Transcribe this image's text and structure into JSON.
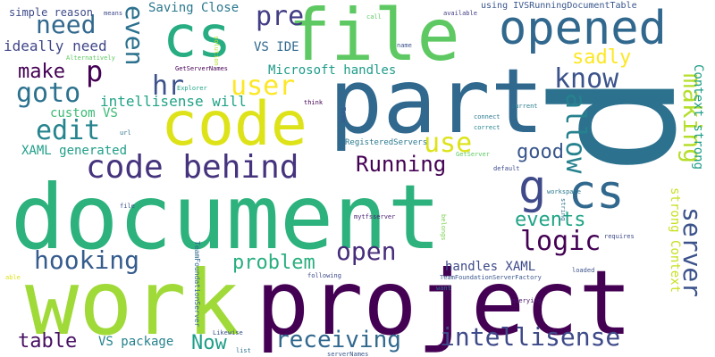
{
  "cloud": {
    "words": [
      {
        "text": "document",
        "color": "#2db27d"
      },
      {
        "text": "p",
        "color": "#2c718e"
      },
      {
        "text": "part",
        "color": "#31688e"
      },
      {
        "text": "work",
        "color": "#a0da39"
      },
      {
        "text": "project",
        "color": "#440154"
      },
      {
        "text": "file",
        "color": "#5ec962"
      },
      {
        "text": "cs",
        "color": "#27ad81"
      },
      {
        "text": "code",
        "color": "#dde318"
      },
      {
        "text": "opened",
        "color": "#31688e"
      },
      {
        "text": "code behind",
        "color": "#46337e"
      },
      {
        "text": "cs",
        "color": "#31688e"
      },
      {
        "text": "g",
        "color": "#3e4a89"
      },
      {
        "text": "pre",
        "color": "#433e85"
      },
      {
        "text": "need",
        "color": "#31688e"
      },
      {
        "text": "p",
        "color": "#440154"
      },
      {
        "text": "intellisense",
        "color": "#3e4a89"
      },
      {
        "text": "hooking",
        "color": "#365c8d"
      },
      {
        "text": "logic",
        "color": "#440154"
      },
      {
        "text": "open",
        "color": "#472d7b"
      },
      {
        "text": "receiving",
        "color": "#31688e"
      },
      {
        "text": "Running",
        "color": "#440154"
      },
      {
        "text": "goto",
        "color": "#2c728e"
      },
      {
        "text": "edit",
        "color": "#25848e"
      },
      {
        "text": "user",
        "color": "#fde725"
      },
      {
        "text": "use",
        "color": "#dde318"
      },
      {
        "text": "know",
        "color": "#3b528b"
      },
      {
        "text": "make",
        "color": "#440154"
      },
      {
        "text": "good",
        "color": "#39568c"
      },
      {
        "text": "events",
        "color": "#20a486"
      },
      {
        "text": "problem",
        "color": "#29af7f"
      },
      {
        "text": "hr",
        "color": "#3b528b"
      },
      {
        "text": "table",
        "color": "#471063"
      },
      {
        "text": "Now",
        "color": "#1f9e89"
      },
      {
        "text": "sadly",
        "color": "#fde725"
      },
      {
        "text": "even",
        "color": "#2c718e"
      },
      {
        "text": "allow",
        "color": "#26828e"
      },
      {
        "text": "making",
        "color": "#b5de2b"
      },
      {
        "text": "server",
        "color": "#3b528b"
      },
      {
        "text": "intellisense will",
        "color": "#20a386"
      },
      {
        "text": "ideally need",
        "color": "#404688"
      },
      {
        "text": "XAML generated",
        "color": "#1f9e89"
      },
      {
        "text": "Saving Close",
        "color": "#2a788e"
      },
      {
        "text": "Microsoft handles",
        "color": "#1e9c89"
      },
      {
        "text": "handles XAML",
        "color": "#3e4a89"
      },
      {
        "text": "VS package",
        "color": "#26828e"
      },
      {
        "text": "custom VS",
        "color": "#3bbb75"
      },
      {
        "text": "VS IDE",
        "color": "#31688e"
      },
      {
        "text": "strong Context",
        "color": "#c8e020"
      },
      {
        "text": "Context strong",
        "color": "#1f9e89"
      },
      {
        "text": "simple reason",
        "color": "#3e4a89"
      },
      {
        "text": "using IVSRunningDocumentTable",
        "color": "#39568c"
      },
      {
        "text": "RegisteredServers",
        "color": "#2a788e"
      },
      {
        "text": "TeamFoundationServerFactory",
        "color": "#39568c"
      },
      {
        "text": "TeamFoundationServer",
        "color": "#31688e"
      },
      {
        "text": "GetServerNames",
        "color": "#440154"
      },
      {
        "text": "GetServer",
        "color": "#5ec962"
      },
      {
        "text": "connect",
        "color": "#2a788e"
      },
      {
        "text": "correct",
        "color": "#25848e"
      },
      {
        "text": "current",
        "color": "#287d8e"
      },
      {
        "text": "default",
        "color": "#3e4a89"
      },
      {
        "text": "workspace",
        "color": "#2a788e"
      },
      {
        "text": "mytfsserver",
        "color": "#481f70"
      },
      {
        "text": "serverNames",
        "color": "#39568c"
      },
      {
        "text": "querying",
        "color": "#481467"
      },
      {
        "text": "loaded",
        "color": "#3b528b"
      },
      {
        "text": "requires",
        "color": "#3e4a89"
      },
      {
        "text": "following",
        "color": "#3e4a89"
      },
      {
        "text": "want",
        "color": "#2c718e"
      },
      {
        "text": "name",
        "color": "#3b528b"
      },
      {
        "text": "solution",
        "color": "#b5de2b"
      },
      {
        "text": "Likewise",
        "color": "#3b528b"
      },
      {
        "text": "list",
        "color": "#2d708e"
      },
      {
        "text": "Alternatively",
        "color": "#5ec962"
      },
      {
        "text": "Explorer",
        "color": "#20a486"
      },
      {
        "text": "think",
        "color": "#440154"
      },
      {
        "text": "Team",
        "color": "#3b528b"
      },
      {
        "text": "means",
        "color": "#3e4a89"
      },
      {
        "text": "call",
        "color": "#5ec962"
      },
      {
        "text": "available",
        "color": "#433e85"
      },
      {
        "text": "url",
        "color": "#2c718e"
      },
      {
        "text": "file",
        "color": "#3b528b"
      },
      {
        "text": "able",
        "color": "#dde318"
      },
      {
        "text": "string",
        "color": "#2c718e"
      },
      {
        "text": "belongs",
        "color": "#7ad151"
      }
    ]
  }
}
